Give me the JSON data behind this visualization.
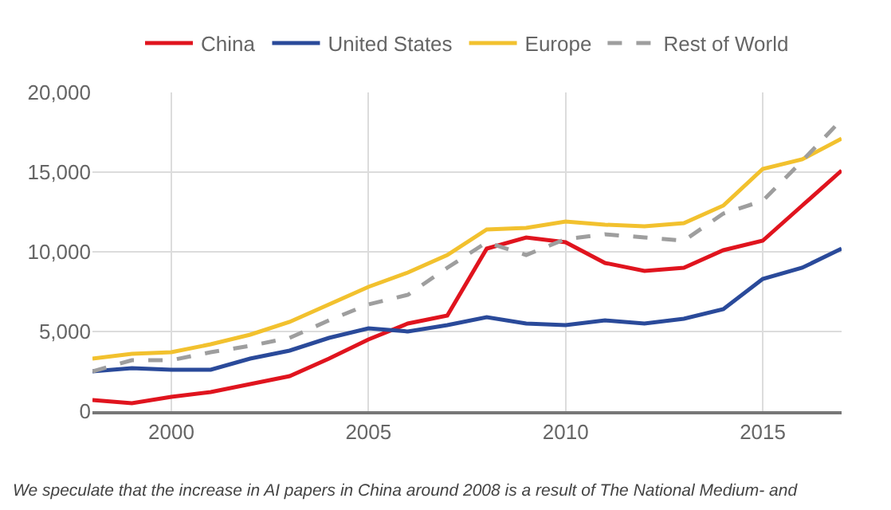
{
  "chart_data": {
    "type": "line",
    "x": [
      1998,
      1999,
      2000,
      2001,
      2002,
      2003,
      2004,
      2005,
      2006,
      2007,
      2008,
      2009,
      2010,
      2011,
      2012,
      2013,
      2014,
      2015,
      2016,
      2017
    ],
    "series": [
      {
        "name": "China",
        "color": "#e0141e",
        "values": [
          700,
          500,
          900,
          1200,
          1700,
          2200,
          3300,
          4500,
          5500,
          6000,
          10200,
          10900,
          10600,
          9300,
          8800,
          9000,
          10100,
          10700,
          12900,
          15100
        ]
      },
      {
        "name": "United States",
        "color": "#2a4a9a",
        "values": [
          2500,
          2700,
          2600,
          2600,
          3300,
          3800,
          4600,
          5200,
          5000,
          5400,
          5900,
          5500,
          5400,
          5700,
          5500,
          5800,
          6400,
          8300,
          9000,
          10200
        ]
      },
      {
        "name": "Europe",
        "color": "#f2c12e",
        "values": [
          3300,
          3600,
          3700,
          4200,
          4800,
          5600,
          6700,
          7800,
          8700,
          9800,
          11400,
          11500,
          11900,
          11700,
          11600,
          11800,
          12900,
          15200,
          15800,
          17100
        ]
      },
      {
        "name": "Rest of World",
        "color": "#9e9e9e",
        "line_style": "dashed",
        "values": [
          2500,
          3200,
          3200,
          3700,
          4100,
          4600,
          5700,
          6700,
          7300,
          9000,
          10600,
          9800,
          10800,
          11100,
          10900,
          10700,
          12400,
          13200,
          15700,
          18300
        ]
      }
    ],
    "xlim": [
      1998,
      2017
    ],
    "xticks": [
      2000,
      2005,
      2010,
      2015
    ],
    "ylim": [
      0,
      20000
    ],
    "yticks": [
      0,
      {
        "value": 5000,
        "label": "5,000"
      },
      {
        "value": 10000,
        "label": "10,000"
      },
      {
        "value": 15000,
        "label": "15,000"
      },
      {
        "value": 20000,
        "label": "20,000"
      }
    ],
    "grid": true,
    "legend": "top",
    "marker": "none",
    "line_style": "solid",
    "annotations": [
      "We speculate that the increase in AI papers in China around 2008 is a result of The National Medium- and"
    ]
  }
}
